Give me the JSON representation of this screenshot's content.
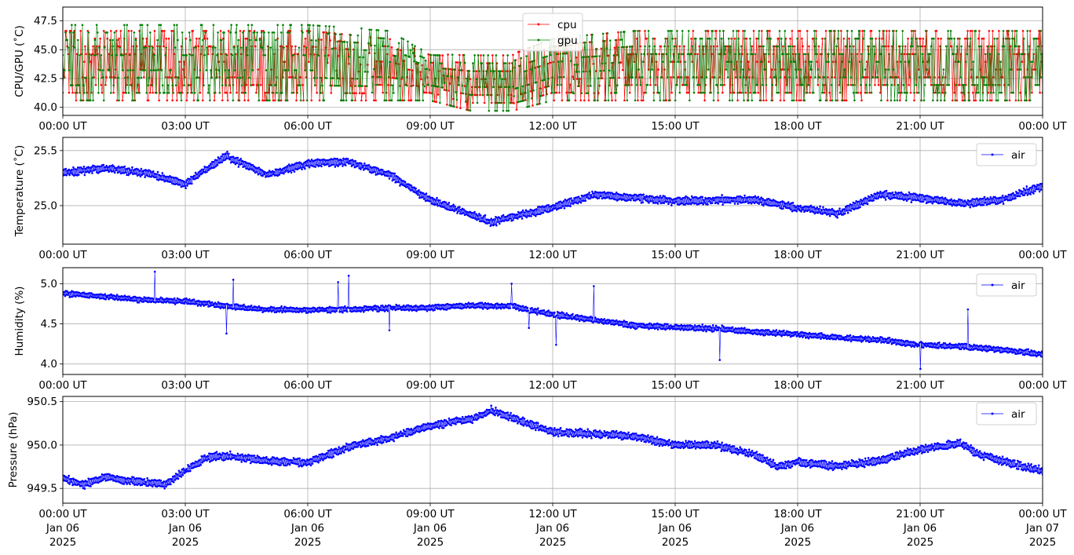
{
  "chart_data": [
    {
      "type": "line",
      "ylabel": "CPU/GPU (˚C)",
      "xlabel": "",
      "x_domain": [
        "2025-01-06T00:00:00Z",
        "2025-01-07T00:00:00Z"
      ],
      "ylim": [
        39.3,
        48.7
      ],
      "yticks": [
        40.0,
        42.5,
        45.0,
        47.5
      ],
      "ytick_labels": [
        "40.0",
        "42.5",
        "45.0",
        "47.5"
      ],
      "xtick_labels": [
        "00:00 UT",
        "03:00 UT",
        "06:00 UT",
        "09:00 UT",
        "12:00 UT",
        "15:00 UT",
        "18:00 UT",
        "21:00 UT",
        "00:00 UT"
      ],
      "grid": true,
      "legend_position": "top-center",
      "series": [
        {
          "name": "cpu",
          "color": "#ff0000",
          "x": [
            "00:00",
            "02:00",
            "04:00",
            "06:00",
            "08:00",
            "09:00",
            "10:00",
            "11:00",
            "12:00",
            "14:00",
            "16:00",
            "18:00",
            "20:00",
            "22:00",
            "24:00"
          ],
          "low": [
            40.6,
            40.6,
            40.6,
            40.6,
            40.6,
            40.6,
            39.7,
            39.7,
            40.6,
            40.6,
            40.6,
            40.6,
            40.6,
            40.6,
            40.6
          ],
          "high": [
            47.3,
            47.3,
            47.3,
            47.3,
            46.6,
            45.2,
            45.2,
            45.2,
            46.6,
            47.3,
            47.3,
            47.3,
            47.3,
            47.3,
            47.3
          ]
        },
        {
          "name": "gpu",
          "color": "#008000",
          "x": [
            "00:00",
            "02:00",
            "04:00",
            "06:00",
            "08:00",
            "09:00",
            "10:00",
            "11:00",
            "12:00",
            "14:00",
            "16:00",
            "18:00",
            "20:00",
            "22:00",
            "24:00"
          ],
          "low": [
            40.6,
            40.6,
            40.6,
            40.6,
            40.6,
            40.6,
            39.7,
            39.7,
            40.6,
            40.6,
            40.6,
            40.6,
            40.6,
            40.6,
            40.6
          ],
          "high": [
            47.8,
            47.8,
            47.8,
            47.8,
            47.3,
            45.2,
            45.2,
            45.2,
            46.6,
            47.3,
            47.3,
            47.3,
            47.3,
            47.3,
            47.3
          ]
        }
      ]
    },
    {
      "type": "line",
      "ylabel": "Temperature (˚C)",
      "xlabel": "",
      "x_domain": [
        "2025-01-06T00:00:00Z",
        "2025-01-07T00:00:00Z"
      ],
      "ylim": [
        24.65,
        25.62
      ],
      "yticks": [
        25.0,
        25.5
      ],
      "ytick_labels": [
        "25.0",
        "25.5"
      ],
      "xtick_labels": [
        "00:00 UT",
        "03:00 UT",
        "06:00 UT",
        "09:00 UT",
        "12:00 UT",
        "15:00 UT",
        "18:00 UT",
        "21:00 UT",
        "00:00 UT"
      ],
      "grid": true,
      "legend_position": "top-right",
      "series": [
        {
          "name": "air",
          "color": "#0000ff",
          "x": [
            "00:00",
            "01:00",
            "02:00",
            "03:00",
            "04:00",
            "05:00",
            "06:00",
            "07:00",
            "08:00",
            "09:00",
            "10:00",
            "10:30",
            "11:00",
            "12:00",
            "13:00",
            "14:00",
            "15:00",
            "16:00",
            "17:00",
            "18:00",
            "19:00",
            "20:00",
            "21:00",
            "22:00",
            "23:00",
            "24:00"
          ],
          "y": [
            25.3,
            25.34,
            25.3,
            25.2,
            25.45,
            25.28,
            25.38,
            25.4,
            25.28,
            25.05,
            24.92,
            24.85,
            24.9,
            24.98,
            25.1,
            25.07,
            25.04,
            25.05,
            25.05,
            24.98,
            24.93,
            25.1,
            25.07,
            25.02,
            25.05,
            25.18
          ]
        }
      ]
    },
    {
      "type": "line",
      "ylabel": "Humidity (%)",
      "xlabel": "",
      "x_domain": [
        "2025-01-06T00:00:00Z",
        "2025-01-07T00:00:00Z"
      ],
      "ylim": [
        3.87,
        5.2
      ],
      "yticks": [
        4.0,
        4.5,
        5.0
      ],
      "ytick_labels": [
        "4.0",
        "4.5",
        "5.0"
      ],
      "xtick_labels": [
        "00:00 UT",
        "03:00 UT",
        "06:00 UT",
        "09:00 UT",
        "12:00 UT",
        "15:00 UT",
        "18:00 UT",
        "21:00 UT",
        "00:00 UT"
      ],
      "grid": true,
      "legend_position": "top-right",
      "series": [
        {
          "name": "air",
          "color": "#0000ff",
          "x": [
            "00:00",
            "01:00",
            "02:00",
            "03:00",
            "04:00",
            "05:00",
            "06:00",
            "07:00",
            "08:00",
            "09:00",
            "10:00",
            "11:00",
            "12:00",
            "13:00",
            "14:00",
            "15:00",
            "16:00",
            "17:00",
            "18:00",
            "19:00",
            "20:00",
            "21:00",
            "22:00",
            "23:00",
            "24:00"
          ],
          "y": [
            4.88,
            4.84,
            4.8,
            4.78,
            4.72,
            4.68,
            4.67,
            4.68,
            4.7,
            4.7,
            4.73,
            4.72,
            4.62,
            4.55,
            4.48,
            4.46,
            4.44,
            4.4,
            4.37,
            4.33,
            4.3,
            4.24,
            4.22,
            4.18,
            4.12
          ],
          "spikes": [
            {
              "x": "02:15",
              "y": 5.15
            },
            {
              "x": "04:10",
              "y": 5.05
            },
            {
              "x": "06:45",
              "y": 5.02
            },
            {
              "x": "07:00",
              "y": 5.1
            },
            {
              "x": "11:00",
              "y": 5.0
            },
            {
              "x": "13:00",
              "y": 4.97
            },
            {
              "x": "22:10",
              "y": 4.68
            },
            {
              "x": "04:00",
              "y": 4.38
            },
            {
              "x": "08:00",
              "y": 4.42
            },
            {
              "x": "11:25",
              "y": 4.45
            },
            {
              "x": "12:05",
              "y": 4.24
            },
            {
              "x": "16:05",
              "y": 4.05
            },
            {
              "x": "21:00",
              "y": 3.94
            }
          ]
        }
      ]
    },
    {
      "type": "line",
      "ylabel": "Pressure (hPa)",
      "xlabel": "",
      "x_domain": [
        "2025-01-06T00:00:00Z",
        "2025-01-07T00:00:00Z"
      ],
      "ylim": [
        949.33,
        950.56
      ],
      "yticks": [
        949.5,
        950.0,
        950.5
      ],
      "ytick_labels": [
        "949.5",
        "950.0",
        "950.5"
      ],
      "xtick_labels": [
        "00:00 UT\nJan 06\n2025",
        "03:00 UT\nJan 06\n2025",
        "06:00 UT\nJan 06\n2025",
        "09:00 UT\nJan 06\n2025",
        "12:00 UT\nJan 06\n2025",
        "15:00 UT\nJan 06\n2025",
        "18:00 UT\nJan 06\n2025",
        "21:00 UT\nJan 06\n2025",
        "00:00 UT\nJan 07\n2025"
      ],
      "grid": true,
      "legend_position": "top-right",
      "series": [
        {
          "name": "air",
          "color": "#0000ff",
          "x": [
            "00:00",
            "00:30",
            "01:00",
            "02:00",
            "02:30",
            "03:00",
            "03:30",
            "04:00",
            "05:00",
            "06:00",
            "07:00",
            "08:00",
            "09:00",
            "10:00",
            "10:30",
            "11:00",
            "12:00",
            "13:00",
            "14:00",
            "15:00",
            "16:00",
            "17:00",
            "17:30",
            "18:00",
            "19:00",
            "20:00",
            "21:00",
            "22:00",
            "22:30",
            "23:00",
            "24:00"
          ],
          "y": [
            949.62,
            949.54,
            949.63,
            949.57,
            949.55,
            949.7,
            949.85,
            949.88,
            949.82,
            949.8,
            949.98,
            950.08,
            950.22,
            950.3,
            950.4,
            950.32,
            950.15,
            950.13,
            950.1,
            950.0,
            950.0,
            949.88,
            949.75,
            949.8,
            949.76,
            949.82,
            949.95,
            950.02,
            949.88,
            949.82,
            949.7
          ]
        }
      ]
    }
  ]
}
